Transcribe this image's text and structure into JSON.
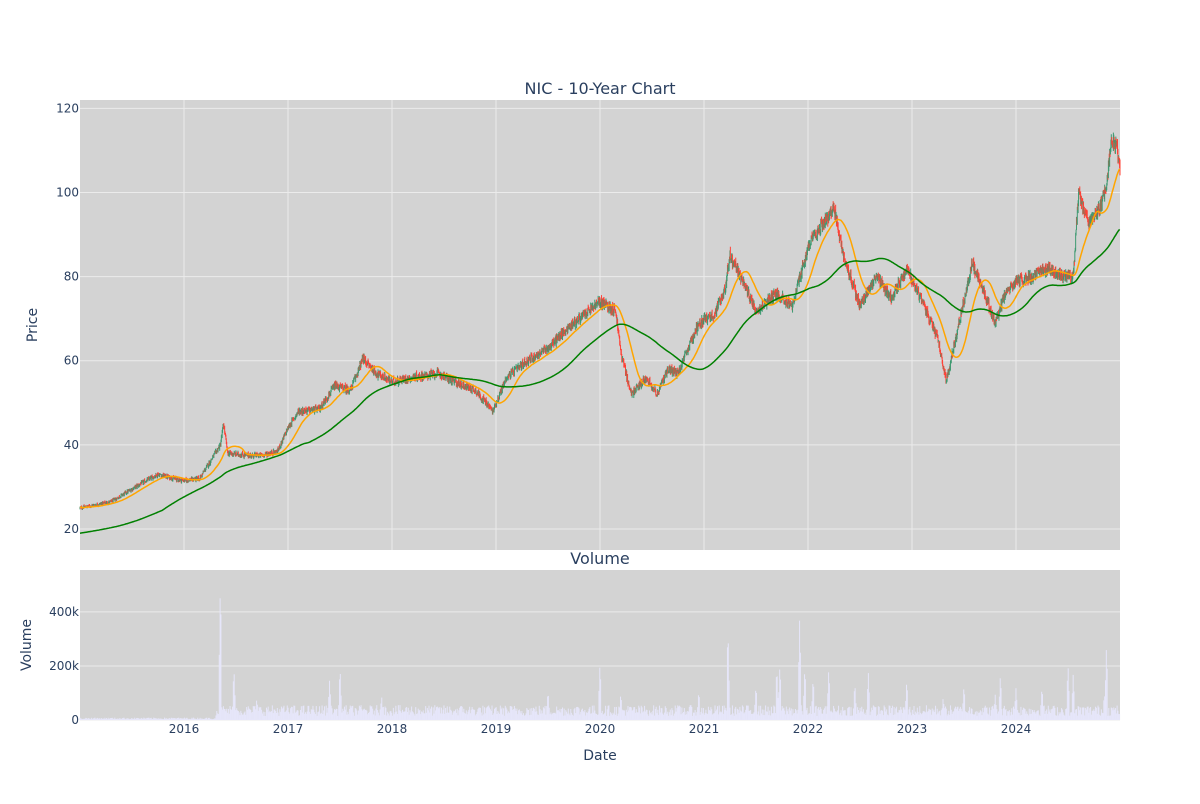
{
  "chart_data": {
    "type": "candlestick",
    "title": "NIC - 10-Year Chart",
    "xlabel": "Date",
    "panels": {
      "price": {
        "ylabel": "Price",
        "yticks": [
          20,
          40,
          60,
          80,
          100,
          120
        ],
        "ylim": [
          15,
          122
        ]
      },
      "volume": {
        "title": "Volume",
        "ylabel": "Volume",
        "yticks": [
          {
            "value": 0,
            "label": "0"
          },
          {
            "value": 200000,
            "label": "200k"
          },
          {
            "value": 400000,
            "label": "400k"
          }
        ],
        "ylim": [
          0,
          555000
        ]
      }
    },
    "xlim": [
      2015.0,
      2025.0
    ],
    "xticks": [
      {
        "value": 2016,
        "label": "2016"
      },
      {
        "value": 2017,
        "label": "2017"
      },
      {
        "value": 2018,
        "label": "2018"
      },
      {
        "value": 2019,
        "label": "2019"
      },
      {
        "value": 2020,
        "label": "2020"
      },
      {
        "value": 2021,
        "label": "2021"
      },
      {
        "value": 2022,
        "label": "2022"
      },
      {
        "value": 2023,
        "label": "2023"
      },
      {
        "value": 2024,
        "label": "2024"
      }
    ],
    "grid": true,
    "legend": "none",
    "colors": {
      "background": "#d3d3d3",
      "grid": "#ebebeb",
      "up": "#3d9970",
      "down": "#ff4136",
      "short_ma": "#ffa500",
      "long_ma": "#008000",
      "volume": "#e6e6fa",
      "text": "#2a3f5f"
    },
    "price_path": [
      [
        2015.0,
        25.0
      ],
      [
        2015.3,
        26.5
      ],
      [
        2015.5,
        29.5
      ],
      [
        2015.6,
        31.0
      ],
      [
        2015.75,
        33.0
      ],
      [
        2015.9,
        32.0
      ],
      [
        2016.0,
        31.5
      ],
      [
        2016.15,
        32.0
      ],
      [
        2016.25,
        36.0
      ],
      [
        2016.35,
        40.0
      ],
      [
        2016.38,
        45.0
      ],
      [
        2016.42,
        38.0
      ],
      [
        2016.6,
        37.5
      ],
      [
        2016.75,
        37.5
      ],
      [
        2016.9,
        38.5
      ],
      [
        2017.0,
        44.0
      ],
      [
        2017.1,
        48.0
      ],
      [
        2017.3,
        48.5
      ],
      [
        2017.45,
        54.0
      ],
      [
        2017.6,
        53.0
      ],
      [
        2017.72,
        60.5
      ],
      [
        2017.85,
        57.0
      ],
      [
        2018.0,
        55.0
      ],
      [
        2018.2,
        56.0
      ],
      [
        2018.45,
        57.0
      ],
      [
        2018.6,
        55.0
      ],
      [
        2018.8,
        53.0
      ],
      [
        2018.97,
        48.0
      ],
      [
        2019.1,
        56.0
      ],
      [
        2019.3,
        60.0
      ],
      [
        2019.5,
        63.0
      ],
      [
        2019.7,
        68.0
      ],
      [
        2019.9,
        72.0
      ],
      [
        2020.0,
        74.0
      ],
      [
        2020.15,
        72.0
      ],
      [
        2020.2,
        62.0
      ],
      [
        2020.3,
        52.0
      ],
      [
        2020.45,
        56.0
      ],
      [
        2020.55,
        52.0
      ],
      [
        2020.65,
        58.0
      ],
      [
        2020.75,
        57.0
      ],
      [
        2020.85,
        63.0
      ],
      [
        2020.95,
        69.0
      ],
      [
        2021.1,
        71.0
      ],
      [
        2021.2,
        77.0
      ],
      [
        2021.25,
        85.0
      ],
      [
        2021.35,
        80.0
      ],
      [
        2021.5,
        72.0
      ],
      [
        2021.7,
        76.0
      ],
      [
        2021.85,
        73.0
      ],
      [
        2022.0,
        87.0
      ],
      [
        2022.15,
        93.0
      ],
      [
        2022.25,
        96.0
      ],
      [
        2022.35,
        84.0
      ],
      [
        2022.5,
        73.0
      ],
      [
        2022.65,
        80.0
      ],
      [
        2022.8,
        75.0
      ],
      [
        2022.95,
        82.0
      ],
      [
        2023.1,
        74.0
      ],
      [
        2023.25,
        65.0
      ],
      [
        2023.33,
        55.0
      ],
      [
        2023.45,
        69.0
      ],
      [
        2023.58,
        83.0
      ],
      [
        2023.7,
        76.0
      ],
      [
        2023.8,
        69.0
      ],
      [
        2023.9,
        76.0
      ],
      [
        2024.0,
        79.0
      ],
      [
        2024.15,
        80.0
      ],
      [
        2024.3,
        82.0
      ],
      [
        2024.45,
        80.0
      ],
      [
        2024.55,
        80.0
      ],
      [
        2024.6,
        100.0
      ],
      [
        2024.7,
        93.0
      ],
      [
        2024.8,
        96.0
      ],
      [
        2024.87,
        102.0
      ],
      [
        2024.92,
        113.0
      ],
      [
        2024.97,
        111.0
      ],
      [
        2025.0,
        106.0
      ]
    ],
    "volume_spikes": [
      [
        2016.35,
        525000
      ],
      [
        2016.48,
        195000
      ],
      [
        2016.7,
        80000
      ],
      [
        2017.4,
        150000
      ],
      [
        2017.5,
        200000
      ],
      [
        2017.9,
        90000
      ],
      [
        2019.5,
        110000
      ],
      [
        2020.0,
        215000
      ],
      [
        2020.2,
        100000
      ],
      [
        2020.95,
        110000
      ],
      [
        2021.23,
        345000
      ],
      [
        2021.5,
        130000
      ],
      [
        2021.7,
        200000
      ],
      [
        2021.73,
        210000
      ],
      [
        2021.92,
        385000
      ],
      [
        2021.97,
        200000
      ],
      [
        2022.05,
        160000
      ],
      [
        2022.2,
        195000
      ],
      [
        2022.45,
        140000
      ],
      [
        2022.58,
        180000
      ],
      [
        2022.95,
        150000
      ],
      [
        2023.3,
        85000
      ],
      [
        2023.5,
        130000
      ],
      [
        2023.8,
        95000
      ],
      [
        2023.85,
        170000
      ],
      [
        2024.0,
        120000
      ],
      [
        2024.25,
        125000
      ],
      [
        2024.5,
        210000
      ],
      [
        2024.55,
        170000
      ],
      [
        2024.85,
        100000
      ],
      [
        2024.87,
        280000
      ]
    ]
  }
}
